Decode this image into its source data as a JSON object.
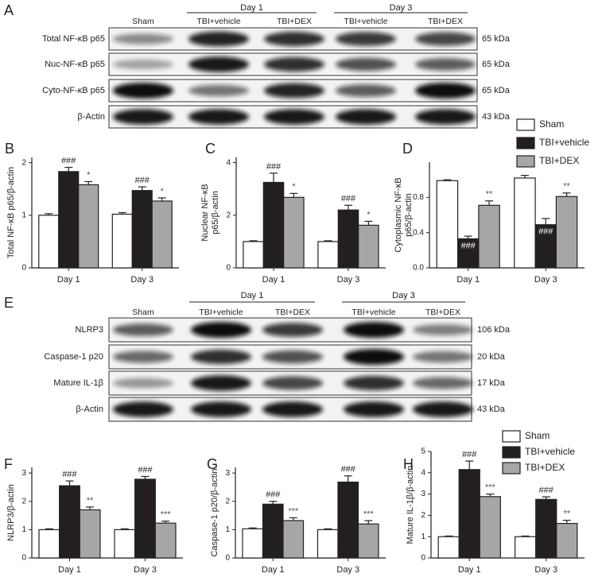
{
  "blots": [
    {
      "panel": "A",
      "days": [
        "Day 1",
        "Day 3"
      ],
      "lanes": [
        "Sham",
        "TBI+vehicle",
        "TBI+DEX",
        "TBI+vehicle",
        "TBI+DEX"
      ],
      "rows": [
        {
          "label": "Total NF-κB p65",
          "size": "65 kDa"
        },
        {
          "label": "Nuc-NF-κB p65",
          "size": "65 kDa"
        },
        {
          "label": "Cyto-NF-κB p65",
          "size": "65 kDa"
        },
        {
          "label": "β-Actin",
          "size": "43 kDa"
        }
      ]
    },
    {
      "panel": "E",
      "days": [
        "Day 1",
        "Day 3"
      ],
      "lanes": [
        "Sham",
        "TBI+vehicle",
        "TBI+DEX",
        "TBI+vehicle",
        "TBI+DEX"
      ],
      "rows": [
        {
          "label": "NLRP3",
          "size": "106 kDa"
        },
        {
          "label": "Caspase-1 p20",
          "size": "20 kDa"
        },
        {
          "label": "Mature IL-1β",
          "size": "17 kDa"
        },
        {
          "label": "β-Actin",
          "size": "43 kDa"
        }
      ]
    }
  ],
  "chart_data": [
    {
      "type": "bar",
      "panel": "B",
      "y_label": [
        "Total NF-κB p65/β-actin"
      ],
      "categories": [
        "Day 1",
        "Day 3"
      ],
      "ylim": [
        0,
        2.1
      ],
      "yticks": [
        0,
        1,
        2
      ],
      "series": [
        {
          "name": "Sham",
          "color": "#ffffff",
          "values": [
            1.0,
            1.02
          ],
          "errors": [
            0.03,
            0.03
          ]
        },
        {
          "name": "TBI+vehicle",
          "color": "#231f20",
          "values": [
            1.83,
            1.47
          ],
          "errors": [
            0.08,
            0.07
          ],
          "annotations": [
            "###",
            "###"
          ]
        },
        {
          "name": "TBI+DEX",
          "color": "#a6a6a6",
          "values": [
            1.58,
            1.27
          ],
          "errors": [
            0.06,
            0.06
          ],
          "annotations": [
            "*",
            "*"
          ]
        }
      ]
    },
    {
      "type": "bar",
      "panel": "C",
      "y_label": [
        "Nuclear NF-κB",
        "p65/β-actin"
      ],
      "categories": [
        "Day 1",
        "Day 3"
      ],
      "ylim": [
        0,
        4.2
      ],
      "yticks": [
        0,
        2,
        4
      ],
      "series": [
        {
          "name": "Sham",
          "color": "#ffffff",
          "values": [
            1.0,
            1.0
          ],
          "errors": [
            0.03,
            0.03
          ]
        },
        {
          "name": "TBI+vehicle",
          "color": "#231f20",
          "values": [
            3.25,
            2.2
          ],
          "errors": [
            0.35,
            0.18
          ],
          "annotations": [
            "###",
            "###"
          ]
        },
        {
          "name": "TBI+DEX",
          "color": "#a6a6a6",
          "values": [
            2.68,
            1.62
          ],
          "errors": [
            0.15,
            0.15
          ],
          "annotations": [
            "*",
            "*"
          ]
        }
      ]
    },
    {
      "type": "bar",
      "panel": "D",
      "y_label": [
        "Cytoplasmic NF-κB",
        "p65/β-actin"
      ],
      "categories": [
        "Day 1",
        "Day 3"
      ],
      "ylim": [
        0,
        1.2
      ],
      "yticks": [
        {
          "value": 0,
          "label": "0.0"
        },
        0.4,
        0.8
      ],
      "legend": "top-right",
      "series": [
        {
          "name": "Sham",
          "color": "#ffffff",
          "values": [
            0.99,
            1.02
          ],
          "errors": [
            0.01,
            0.03
          ]
        },
        {
          "name": "TBI+vehicle",
          "color": "#231f20",
          "values": [
            0.33,
            0.49
          ],
          "errors": [
            0.03,
            0.07
          ],
          "annotations": [
            "###",
            "###"
          ],
          "annotations_inside": true
        },
        {
          "name": "TBI+DEX",
          "color": "#a6a6a6",
          "values": [
            0.71,
            0.81
          ],
          "errors": [
            0.05,
            0.04
          ],
          "annotations": [
            "**",
            "**"
          ]
        }
      ]
    },
    {
      "type": "bar",
      "panel": "F",
      "y_label": [
        "NLRP3/β-actin"
      ],
      "categories": [
        "Day 1",
        "Day 3"
      ],
      "ylim": [
        0,
        3.2
      ],
      "yticks": [
        0,
        1,
        2,
        3
      ],
      "series": [
        {
          "name": "Sham",
          "color": "#ffffff",
          "values": [
            1.0,
            1.0
          ],
          "errors": [
            0.03,
            0.03
          ]
        },
        {
          "name": "TBI+vehicle",
          "color": "#231f20",
          "values": [
            2.55,
            2.78
          ],
          "errors": [
            0.17,
            0.1
          ],
          "annotations": [
            "###",
            "###"
          ]
        },
        {
          "name": "TBI+DEX",
          "color": "#a6a6a6",
          "values": [
            1.7,
            1.23
          ],
          "errors": [
            0.1,
            0.07
          ],
          "annotations": [
            "**",
            "***"
          ]
        }
      ]
    },
    {
      "type": "bar",
      "panel": "G",
      "y_label": [
        "Caspase-1 p20/β-actin"
      ],
      "categories": [
        "Day 1",
        "Day 3"
      ],
      "ylim": [
        0,
        3.2
      ],
      "yticks": [
        0,
        1,
        2,
        3
      ],
      "series": [
        {
          "name": "Sham",
          "color": "#ffffff",
          "values": [
            1.03,
            1.0
          ],
          "errors": [
            0.03,
            0.03
          ]
        },
        {
          "name": "TBI+vehicle",
          "color": "#231f20",
          "values": [
            1.9,
            2.68
          ],
          "errors": [
            0.1,
            0.22
          ],
          "annotations": [
            "###",
            "###"
          ]
        },
        {
          "name": "TBI+DEX",
          "color": "#a6a6a6",
          "values": [
            1.32,
            1.2
          ],
          "errors": [
            0.1,
            0.12
          ],
          "annotations": [
            "***",
            "***"
          ]
        }
      ]
    },
    {
      "type": "bar",
      "panel": "H",
      "y_label": [
        "Mature IL-1β/β-actin"
      ],
      "categories": [
        "Day 1",
        "Day 3"
      ],
      "ylim": [
        0,
        5
      ],
      "yticks": [
        0,
        1,
        2,
        3,
        4,
        5
      ],
      "legend": "top-right",
      "series": [
        {
          "name": "Sham",
          "color": "#ffffff",
          "values": [
            1.0,
            1.0
          ],
          "errors": [
            0.03,
            0.03
          ]
        },
        {
          "name": "TBI+vehicle",
          "color": "#231f20",
          "values": [
            4.15,
            2.75
          ],
          "errors": [
            0.4,
            0.12
          ],
          "annotations": [
            "###",
            "###"
          ]
        },
        {
          "name": "TBI+DEX",
          "color": "#a6a6a6",
          "values": [
            2.88,
            1.62
          ],
          "errors": [
            0.12,
            0.15
          ],
          "annotations": [
            "***",
            "**"
          ]
        }
      ]
    }
  ]
}
